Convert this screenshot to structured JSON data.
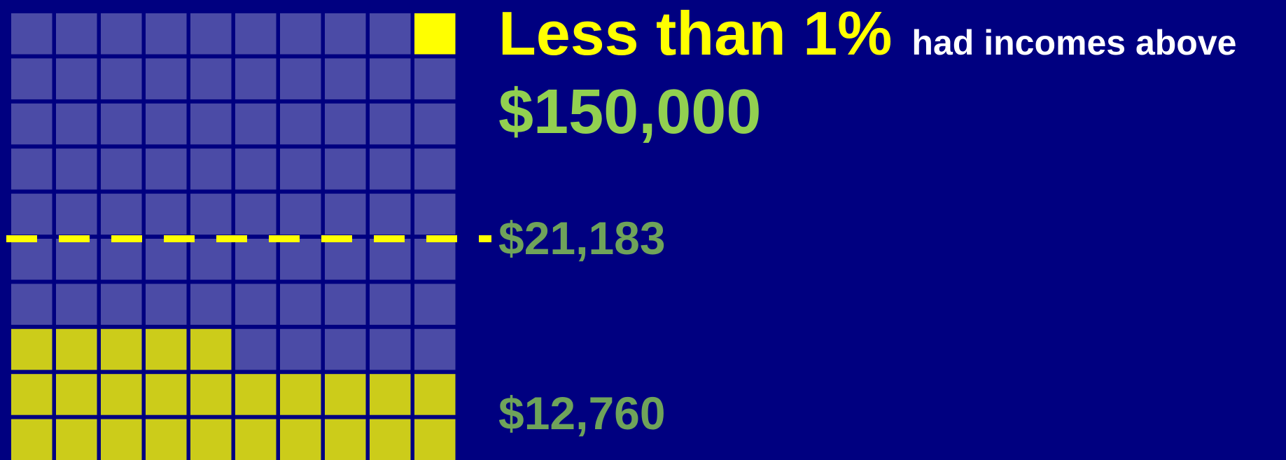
{
  "headline": {
    "emphasis": "Less than 1%",
    "rest": "had incomes above",
    "amount": "$150,000"
  },
  "markers": {
    "median": "$21,183",
    "lower": "$12,760"
  }
}
